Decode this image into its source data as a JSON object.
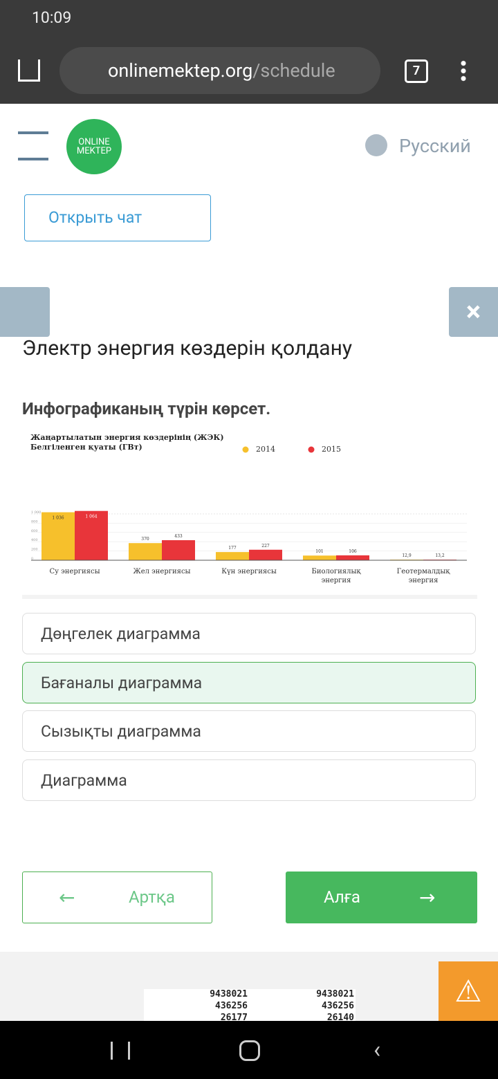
{
  "status_bar": {
    "time": "10:09"
  },
  "browser": {
    "url_host": "onlinemektep.org",
    "url_path": "/schedule",
    "tabs": "7"
  },
  "header": {
    "logo_top": "ONLINE",
    "logo_bottom": "MEKTEP",
    "language": "Русский"
  },
  "chat_button": "Открыть чат",
  "lesson_title": "Электр энергия көздерін қолдану",
  "question": "Инфографиканың түрін көрсет.",
  "chart_data": {
    "type": "bar",
    "title": "Жаңартылатын энергия көздерінің (ЖЭК)",
    "subtitle": "Белгіленген қуаты (ГВт)",
    "categories": [
      "Су энергиясы",
      "Жел энергиясы",
      "Күн энергиясы",
      "Биологиялық\nэнергия",
      "Геотермалдық\nэнергия"
    ],
    "series": [
      {
        "name": "2014",
        "color": "#f6c02c",
        "values": [
          1036,
          370,
          177,
          101,
          12.9
        ],
        "value_labels": [
          "1 036",
          "370",
          "177",
          "101",
          "12,9"
        ]
      },
      {
        "name": "2015",
        "color": "#e8353a",
        "values": [
          1064,
          433,
          227,
          106,
          13.2
        ],
        "value_labels": [
          "1 064",
          "433",
          "227",
          "106",
          "13,2"
        ]
      }
    ],
    "ylim": [
      0,
      1000
    ],
    "yticks": [
      0,
      200,
      400,
      600,
      800,
      {
        "value": 1000,
        "label": "1 000"
      }
    ],
    "grid": true
  },
  "options": [
    "Дөңгелек диаграмма",
    "Бағаналы диаграмма",
    "Сызықты диаграмма",
    "Диаграмма"
  ],
  "selected_option": 1,
  "nav": {
    "back": "Артқа",
    "next": "Алға"
  },
  "ad": {
    "left": [
      "9438021",
      "436256",
      "26177"
    ],
    "right": [
      "9438021",
      "436256",
      "26140"
    ]
  }
}
